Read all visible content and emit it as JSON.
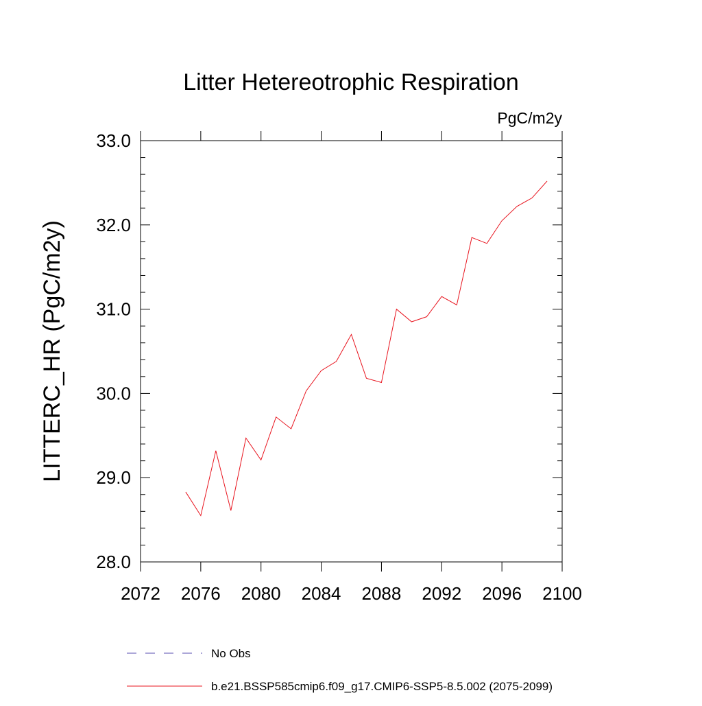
{
  "chart_data": {
    "type": "line",
    "title": "Litter Hetereotrophic Respiration",
    "units": "PgC/m2y",
    "ylabel": "LITTERC_HR  (PgC/m2y)",
    "xlabel": "",
    "xlim": [
      2072,
      2100
    ],
    "ylim": [
      28.0,
      33.0
    ],
    "xticks": [
      2072,
      2076,
      2080,
      2084,
      2088,
      2092,
      2096,
      2100
    ],
    "xtick_labels": [
      "2072",
      "2076",
      "2080",
      "2084",
      "2088",
      "2092",
      "2096",
      "2100"
    ],
    "yticks": [
      28.0,
      29.0,
      30.0,
      31.0,
      32.0,
      33.0
    ],
    "ytick_labels": [
      "28.0",
      "29.0",
      "30.0",
      "31.0",
      "32.0",
      "33.0"
    ],
    "grid": false,
    "legend_position": "bottom",
    "legend": [
      {
        "label": "No Obs",
        "color": "#5a4fb0",
        "style": "dashed"
      },
      {
        "label": "b.e21.BSSP585cmip6.f09_g17.CMIP6-SSP5-8.5.002 (2075-2099)",
        "color": "#e8141e",
        "style": "solid"
      }
    ],
    "series": [
      {
        "name": "b.e21.BSSP585cmip6.f09_g17.CMIP6-SSP5-8.5.002 (2075-2099)",
        "color": "#e8141e",
        "x": [
          2075,
          2076,
          2077,
          2078,
          2079,
          2080,
          2081,
          2082,
          2083,
          2084,
          2085,
          2086,
          2087,
          2088,
          2089,
          2090,
          2091,
          2092,
          2093,
          2094,
          2095,
          2096,
          2097,
          2098,
          2099
        ],
        "values": [
          28.83,
          28.55,
          29.32,
          28.61,
          29.47,
          29.21,
          29.72,
          29.58,
          30.03,
          30.27,
          30.38,
          30.7,
          30.18,
          30.13,
          31.0,
          30.85,
          30.91,
          31.15,
          31.05,
          31.85,
          31.78,
          32.05,
          32.22,
          32.32,
          32.52
        ]
      }
    ]
  }
}
